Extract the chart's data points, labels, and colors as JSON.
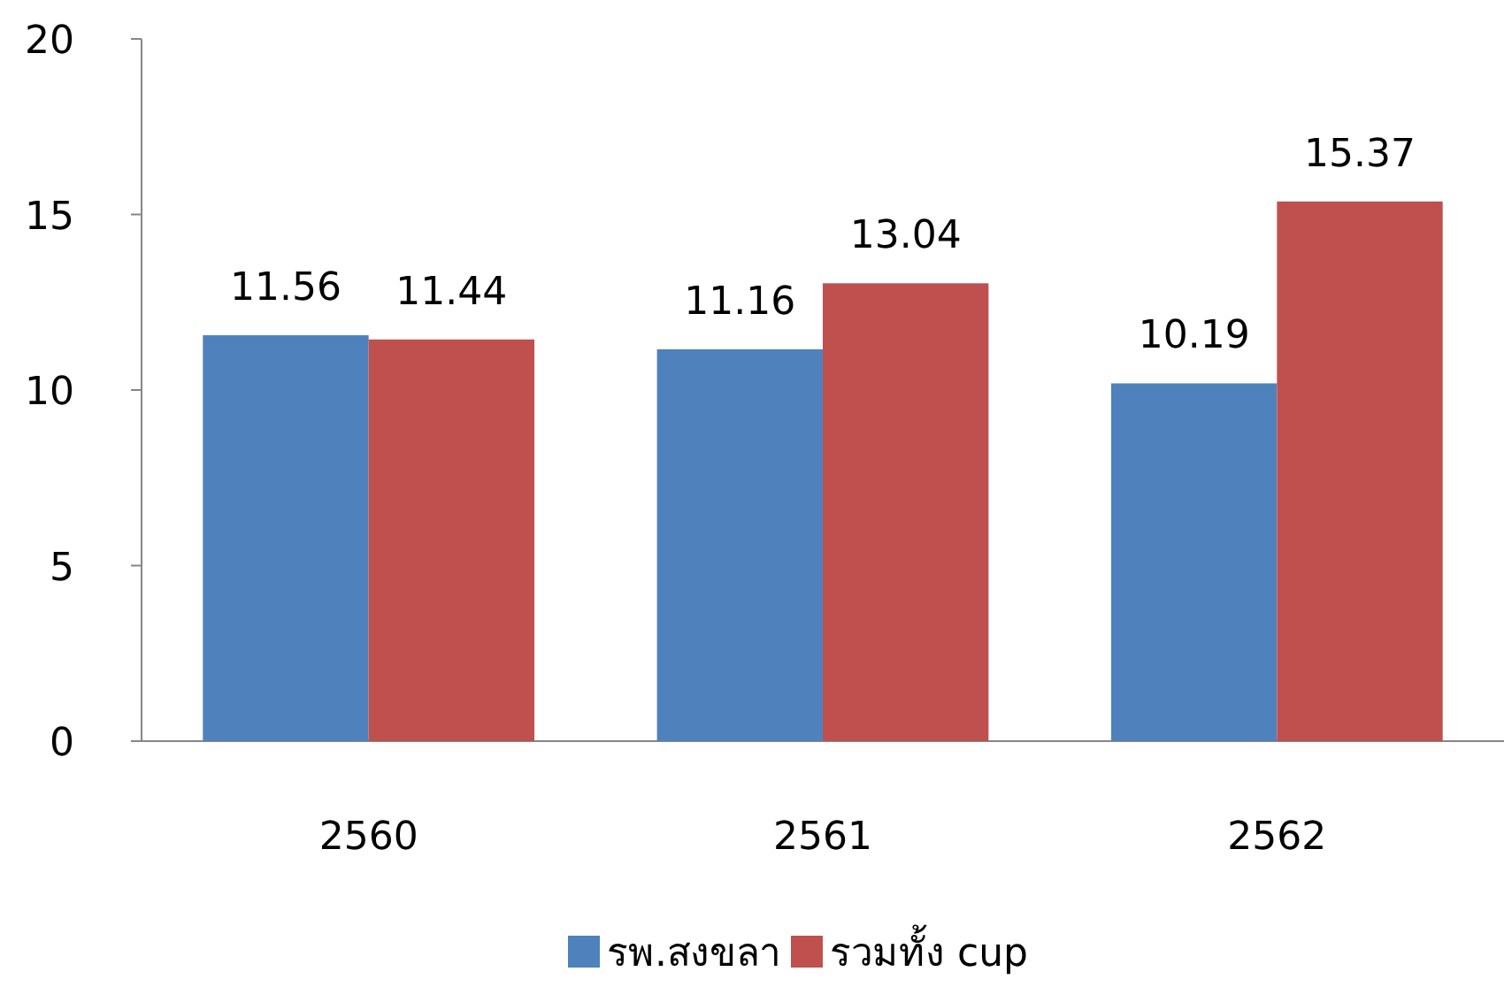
{
  "chart_data": {
    "type": "bar",
    "categories": [
      "2560",
      "2561",
      "2562"
    ],
    "series": [
      {
        "name": "รพ.สงขลา",
        "color": "#4f81bd",
        "values": [
          11.56,
          11.16,
          10.19
        ]
      },
      {
        "name": "รวมทั้ง cup",
        "color": "#c0504d",
        "values": [
          11.44,
          13.04,
          15.37
        ]
      }
    ],
    "ylim": [
      0,
      20
    ],
    "yticks": [
      0,
      5,
      10,
      15,
      20
    ],
    "data_labels": true,
    "legend": "bottom"
  }
}
